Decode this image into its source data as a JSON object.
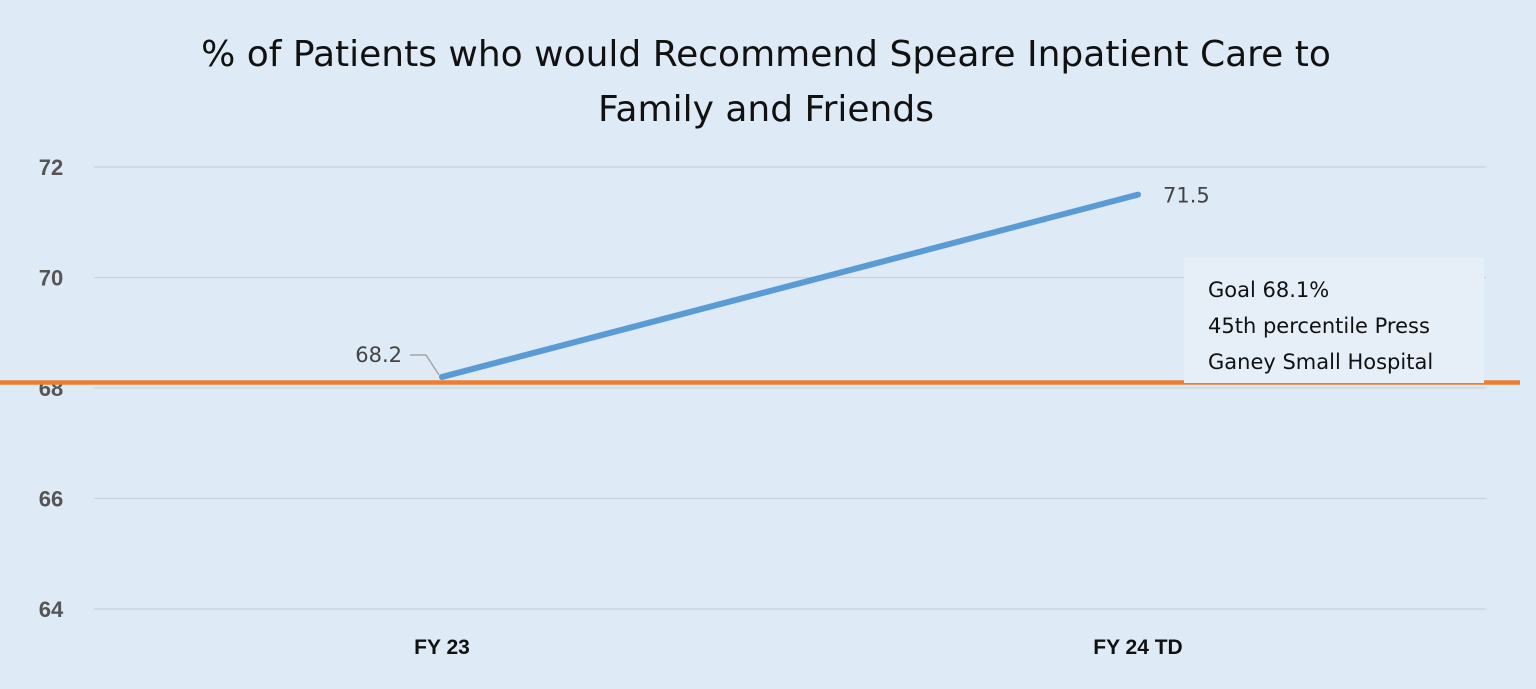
{
  "chart_data": {
    "type": "line",
    "title": [
      "% of Patients who would Recommend Speare Inpatient Care to",
      "Family and Friends"
    ],
    "categories": [
      "FY 23",
      "FY 24 TD"
    ],
    "series": [
      {
        "values": [
          68.2,
          71.5
        ],
        "color": "#5b9bd5",
        "data_labels": [
          "68.2",
          "71.5"
        ]
      }
    ],
    "reference_line": {
      "value": 68.1,
      "color": "#ed7d31",
      "label_lines": [
        "Goal 68.1%",
        "45th percentile Press",
        "Ganey Small Hospital"
      ]
    },
    "yticks": [
      "72",
      "70",
      "68",
      "66",
      "64"
    ],
    "ylim": [
      64,
      72
    ],
    "grid": true
  }
}
